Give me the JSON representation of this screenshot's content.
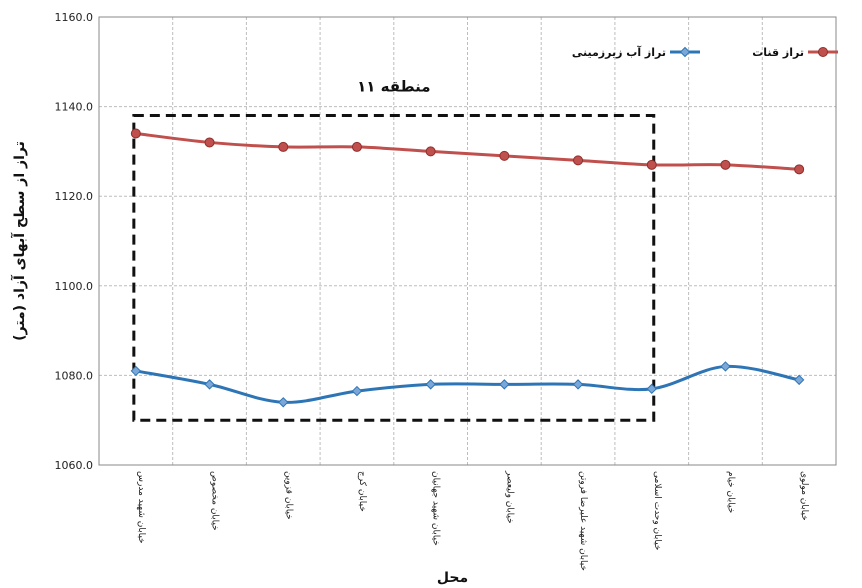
{
  "chart_data": {
    "type": "line",
    "xlabel": "محل",
    "ylabel": "تراز از سطح آبهای آزاد (متر)",
    "ylim": [
      1060,
      1160
    ],
    "yticks": [
      "1060.0",
      "1080.0",
      "1100.0",
      "1120.0",
      "1140.0",
      "1160.0"
    ],
    "grid": true,
    "legend_position": "top-right",
    "categories": [
      "خیابان شهید مدرس",
      "خیابان مخصوص",
      "خیابان قزوین",
      "خیابان کرج",
      "خیابان شهید جهانیان",
      "خیابان ولیعصر",
      "خیابان شهید علیرضا فروتن",
      "خیابان وحدت اسلامی",
      "خیابان خیام",
      "خیابان مولوی"
    ],
    "series": [
      {
        "name": "تراز قنات",
        "color": "#c0504d",
        "marker": "circle",
        "values": [
          1134,
          1132,
          1131,
          1131,
          1130,
          1129,
          1128,
          1127,
          1127,
          1126
        ]
      },
      {
        "name": "تراز آب زیرزمینی",
        "color": "#2e75b6",
        "marker": "diamond",
        "values": [
          1081,
          1078,
          1074,
          1076.5,
          1078,
          1078,
          1078,
          1077,
          1082,
          1079
        ]
      }
    ],
    "annotations": [
      {
        "text": "منطقه ۱۱",
        "type": "dashed-box",
        "x_from_category": 0,
        "x_to_category": 7,
        "y_from": 1070,
        "y_to": 1138
      }
    ]
  }
}
